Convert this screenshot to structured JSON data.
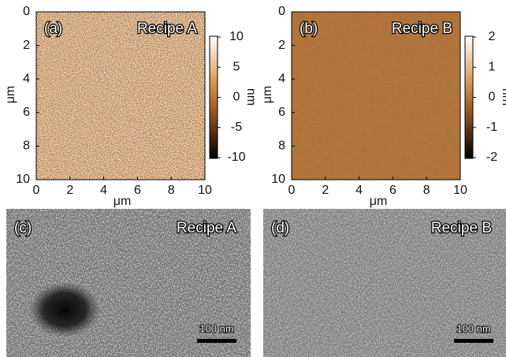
{
  "panels": [
    {
      "label": "(a)",
      "recipe": "Recipe A",
      "x_ticks": [
        0,
        2,
        4,
        6,
        8,
        10
      ],
      "y_ticks": [
        0,
        2,
        4,
        6,
        8,
        10
      ],
      "x_axis_label": "μm",
      "y_axis_label": "μm",
      "colorbar_ticks": [
        10,
        5,
        0,
        -5,
        -10
      ],
      "colorbar_label": "nm"
    },
    {
      "label": "(b)",
      "recipe": "Recipe B",
      "x_ticks": [
        0,
        2,
        4,
        6,
        8,
        10
      ],
      "y_ticks": [
        0,
        2,
        4,
        6,
        8,
        10
      ],
      "x_axis_label": "μm",
      "y_axis_label": "μm",
      "colorbar_ticks": [
        2,
        1,
        0,
        -1,
        -2
      ],
      "colorbar_label": "nm"
    },
    {
      "label": "(c)",
      "recipe": "Recipe A",
      "scale_bar": "100 nm"
    },
    {
      "label": "(d)",
      "recipe": "Recipe B",
      "scale_bar": "100 nm"
    }
  ]
}
